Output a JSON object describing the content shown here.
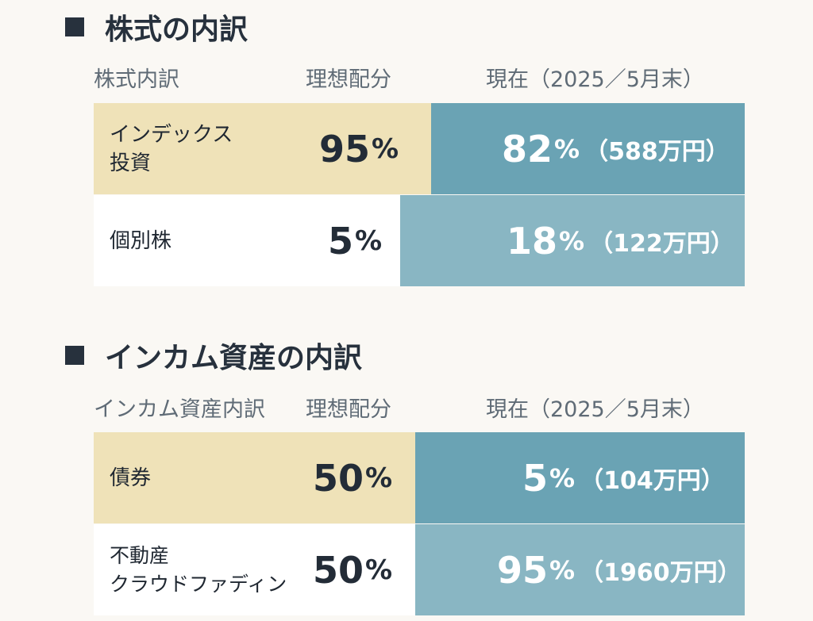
{
  "stocks": {
    "title": "株式の内訳",
    "headers": {
      "category": "株式内訳",
      "ideal": "理想配分",
      "current": "現在（2025／5月末）"
    },
    "rows": [
      {
        "label_line1": "インデックス",
        "label_line2": "投資",
        "ideal_value": "95",
        "ideal_unit": "%",
        "current_value": "82",
        "current_unit": "%",
        "current_amount": "（588万円）"
      },
      {
        "label_line1": "個別株",
        "label_line2": "",
        "ideal_value": "5",
        "ideal_unit": "%",
        "current_value": "18",
        "current_unit": "%",
        "current_amount": "（122万円）"
      }
    ]
  },
  "income": {
    "title": "インカム資産の内訳",
    "headers": {
      "category": "インカム資産内訳",
      "ideal": "理想配分",
      "current": "現在（2025／5月末）"
    },
    "rows": [
      {
        "label_line1": "債券",
        "label_line2": "",
        "ideal_value": "50",
        "ideal_unit": "%",
        "current_value": "5",
        "current_unit": "%",
        "current_amount": "（104万円）"
      },
      {
        "label_line1": "不動産",
        "label_line2": "クラウドファディン",
        "ideal_value": "50",
        "ideal_unit": "%",
        "current_value": "95",
        "current_unit": "%",
        "current_amount": "（1960万円）"
      }
    ]
  },
  "colors": {
    "background": "#faf8f4",
    "cream": "#efe2b8",
    "teal_dark": "#6aa3b4",
    "teal_light": "#89b6c3",
    "text_dark": "#27313d"
  }
}
